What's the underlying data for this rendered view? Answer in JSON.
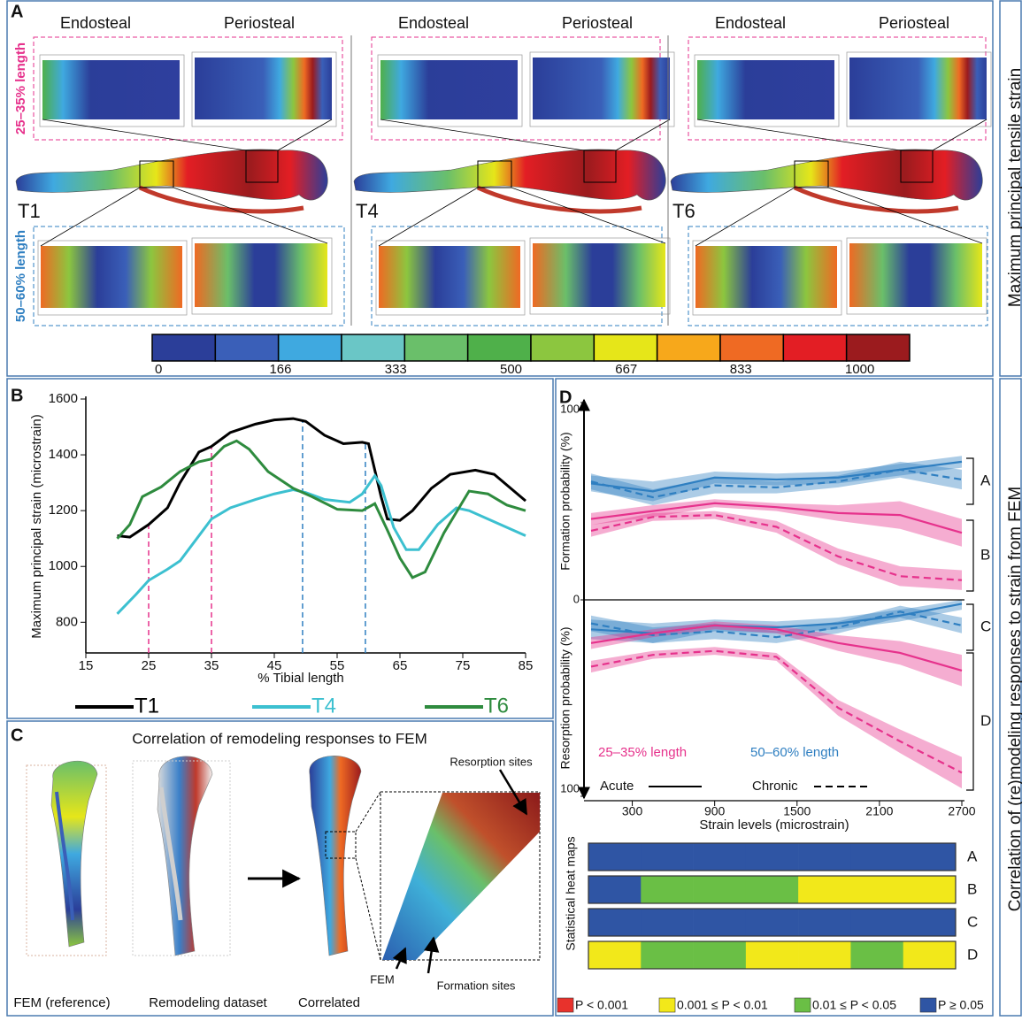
{
  "panel_a": {
    "label": "A",
    "columns": [
      {
        "endosteal": "Endosteal",
        "periosteal": "Periosteal",
        "specimen": "T1"
      },
      {
        "endosteal": "Endosteal",
        "periosteal": "Periosteal",
        "specimen": "T4"
      },
      {
        "endosteal": "Endosteal",
        "periosteal": "Periosteal",
        "specimen": "T6"
      }
    ],
    "region_top": "25–35% length",
    "region_bottom": "50–60% length",
    "side_title": "Maximum principal tensile strain",
    "colorbar": {
      "colors": [
        "#2b3e99",
        "#3a5fb8",
        "#3fa9e0",
        "#6ac6c6",
        "#6abf6a",
        "#4fb04a",
        "#8cc63f",
        "#e6e619",
        "#f7a81b",
        "#ef6a23",
        "#e31e24",
        "#9b1b1e"
      ],
      "ticks": [
        0,
        166,
        333,
        500,
        667,
        833,
        1000
      ]
    }
  },
  "panel_b": {
    "label": "B"
  },
  "panel_c": {
    "label": "C",
    "title": "Correlation of remodeling responses to FEM",
    "captions": [
      "FEM (reference)",
      "Remodeling  dataset",
      "Correlated"
    ],
    "resorption": "Resorption sites",
    "fem": "FEM",
    "formation": "Formation sites"
  },
  "panel_d": {
    "label": "D",
    "side_title": "Correlation of (re)modeling responses to strain from FEM",
    "brackets": [
      "A",
      "B",
      "C",
      "D"
    ],
    "regions": [
      {
        "label": "25–35% length",
        "color": "#e6328c"
      },
      {
        "label": "50–60% length",
        "color": "#2f7fc1"
      }
    ],
    "styles": [
      {
        "label": "Acute",
        "dashed": false
      },
      {
        "label": "Chronic",
        "dashed": true
      }
    ]
  },
  "chart_data": [
    {
      "type": "line",
      "xlabel": "% Tibial length",
      "ylabel": "Maximum principal strain (microstrain)",
      "xlim": [
        15,
        85
      ],
      "xticks": [
        15,
        25,
        35,
        45,
        55,
        65,
        75,
        85
      ],
      "ylim": [
        690,
        1600
      ],
      "yticks": [
        800,
        1000,
        1200,
        1400,
        1600
      ],
      "reference_lines": [
        {
          "x": 25,
          "color": "#e6328c"
        },
        {
          "x": 35,
          "color": "#e6328c"
        },
        {
          "x": 49.5,
          "color": "#2f7fc1"
        },
        {
          "x": 59.5,
          "color": "#2f7fc1"
        }
      ],
      "series": [
        {
          "name": "T1",
          "color": "#000000",
          "x": [
            20,
            22,
            25,
            28,
            30,
            33,
            35,
            38,
            42,
            45,
            48,
            50,
            53,
            56,
            59,
            60,
            62,
            63,
            65,
            67,
            70,
            73,
            77,
            80,
            85
          ],
          "values": [
            1110,
            1105,
            1150,
            1210,
            1300,
            1410,
            1430,
            1480,
            1510,
            1525,
            1530,
            1520,
            1470,
            1440,
            1445,
            1440,
            1250,
            1170,
            1165,
            1200,
            1280,
            1330,
            1345,
            1330,
            1235
          ]
        },
        {
          "name": "T4",
          "color": "#3cc0d0",
          "x": [
            20,
            23,
            25,
            28,
            30,
            33,
            35,
            38,
            42,
            45,
            48,
            50,
            53,
            57,
            59,
            61,
            62,
            64,
            66,
            68,
            71,
            74,
            76,
            80,
            85
          ],
          "values": [
            830,
            900,
            950,
            990,
            1020,
            1110,
            1170,
            1210,
            1240,
            1260,
            1275,
            1265,
            1240,
            1230,
            1260,
            1325,
            1290,
            1140,
            1060,
            1060,
            1150,
            1210,
            1200,
            1160,
            1110
          ]
        },
        {
          "name": "T6",
          "color": "#2e8b3e",
          "x": [
            20,
            22,
            24,
            27,
            30,
            33,
            35,
            37,
            39,
            41,
            44,
            48,
            51,
            55,
            59,
            61,
            63,
            65,
            67,
            69,
            72,
            76,
            79,
            82,
            85
          ],
          "values": [
            1100,
            1150,
            1250,
            1285,
            1340,
            1375,
            1385,
            1430,
            1450,
            1420,
            1340,
            1280,
            1250,
            1205,
            1200,
            1225,
            1130,
            1030,
            960,
            980,
            1120,
            1270,
            1260,
            1220,
            1200
          ]
        }
      ]
    },
    {
      "type": "band-line",
      "ylabel": "Formation probability (%)",
      "xlim": [
        0,
        2700
      ],
      "ylim": [
        0,
        100
      ],
      "yticks": [
        0,
        100
      ],
      "x": [
        0,
        450,
        900,
        1350,
        1800,
        2250,
        2700
      ],
      "series": [
        {
          "color": "#2f7fc1",
          "dashed": false,
          "values": [
            59,
            55,
            62,
            61,
            62,
            66,
            70
          ],
          "lower": [
            55,
            50,
            59,
            58,
            59,
            63,
            67
          ],
          "upper": [
            63,
            60,
            65,
            64,
            65,
            69,
            73
          ]
        },
        {
          "color": "#2f7fc1",
          "dashed": true,
          "values": [
            60,
            52,
            58,
            57,
            60,
            66,
            61
          ],
          "lower": [
            56,
            48,
            54,
            54,
            57,
            62,
            56
          ],
          "upper": [
            64,
            56,
            62,
            60,
            63,
            70,
            66
          ]
        },
        {
          "color": "#e6328c",
          "dashed": false,
          "values": [
            41,
            45,
            49,
            47,
            44,
            43,
            34
          ],
          "lower": [
            38,
            42,
            47,
            45,
            40,
            36,
            27
          ],
          "upper": [
            44,
            48,
            51,
            49,
            48,
            50,
            41
          ]
        },
        {
          "color": "#e6328c",
          "dashed": true,
          "values": [
            35,
            42,
            43,
            37,
            22,
            12,
            10
          ],
          "lower": [
            32,
            40,
            41,
            34,
            18,
            7,
            5
          ],
          "upper": [
            38,
            44,
            45,
            40,
            26,
            17,
            15
          ]
        }
      ]
    },
    {
      "type": "band-line",
      "ylabel": "Resorption probability (%)",
      "xlabel": "Strain levels (microstrain)",
      "inverted": true,
      "xlim": [
        0,
        2700
      ],
      "xticks": [
        300,
        900,
        1500,
        2100,
        2700
      ],
      "ylim": [
        0,
        100
      ],
      "yticks": [
        100
      ],
      "x": [
        0,
        450,
        900,
        1350,
        1800,
        2250,
        2700
      ],
      "series": [
        {
          "color": "#2f7fc1",
          "dashed": false,
          "values": [
            15,
            17,
            13,
            14,
            12,
            8,
            2
          ],
          "lower": [
            10,
            12,
            10,
            11,
            9,
            5,
            0
          ],
          "upper": [
            20,
            22,
            16,
            17,
            15,
            11,
            5
          ]
        },
        {
          "color": "#2f7fc1",
          "dashed": true,
          "values": [
            12,
            18,
            16,
            19,
            14,
            6,
            13
          ],
          "lower": [
            8,
            14,
            12,
            16,
            11,
            3,
            9
          ],
          "upper": [
            16,
            22,
            20,
            22,
            17,
            9,
            17
          ]
        },
        {
          "color": "#e6328c",
          "dashed": false,
          "values": [
            22,
            17,
            13,
            15,
            22,
            27,
            36
          ],
          "lower": [
            19,
            15,
            11,
            13,
            18,
            21,
            28
          ],
          "upper": [
            25,
            19,
            15,
            17,
            26,
            33,
            44
          ]
        },
        {
          "color": "#e6328c",
          "dashed": true,
          "values": [
            34,
            28,
            26,
            29,
            55,
            72,
            88
          ],
          "lower": [
            31,
            26,
            24,
            27,
            51,
            66,
            80
          ],
          "upper": [
            37,
            30,
            28,
            31,
            59,
            78,
            96
          ]
        }
      ]
    },
    {
      "type": "heatmap",
      "ylabel": "Statistical heat maps",
      "rows": [
        "A",
        "B",
        "C",
        "D"
      ],
      "levels": [
        {
          "label": "P < 0.001",
          "color": "#e8322c"
        },
        {
          "label": "0.001 ≤ P < 0.01",
          "color": "#f2e81a"
        },
        {
          "label": "0.01 ≤ P < 0.05",
          "color": "#6abf45"
        },
        {
          "label": "P ≥ 0.05",
          "color": "#2f55a4"
        }
      ],
      "cells": [
        [
          3,
          3,
          3,
          3,
          3,
          3,
          3
        ],
        [
          3,
          2,
          2,
          2,
          1,
          1,
          1
        ],
        [
          3,
          3,
          3,
          3,
          3,
          3,
          3
        ],
        [
          1,
          2,
          2,
          1,
          1,
          2,
          1
        ]
      ]
    }
  ]
}
